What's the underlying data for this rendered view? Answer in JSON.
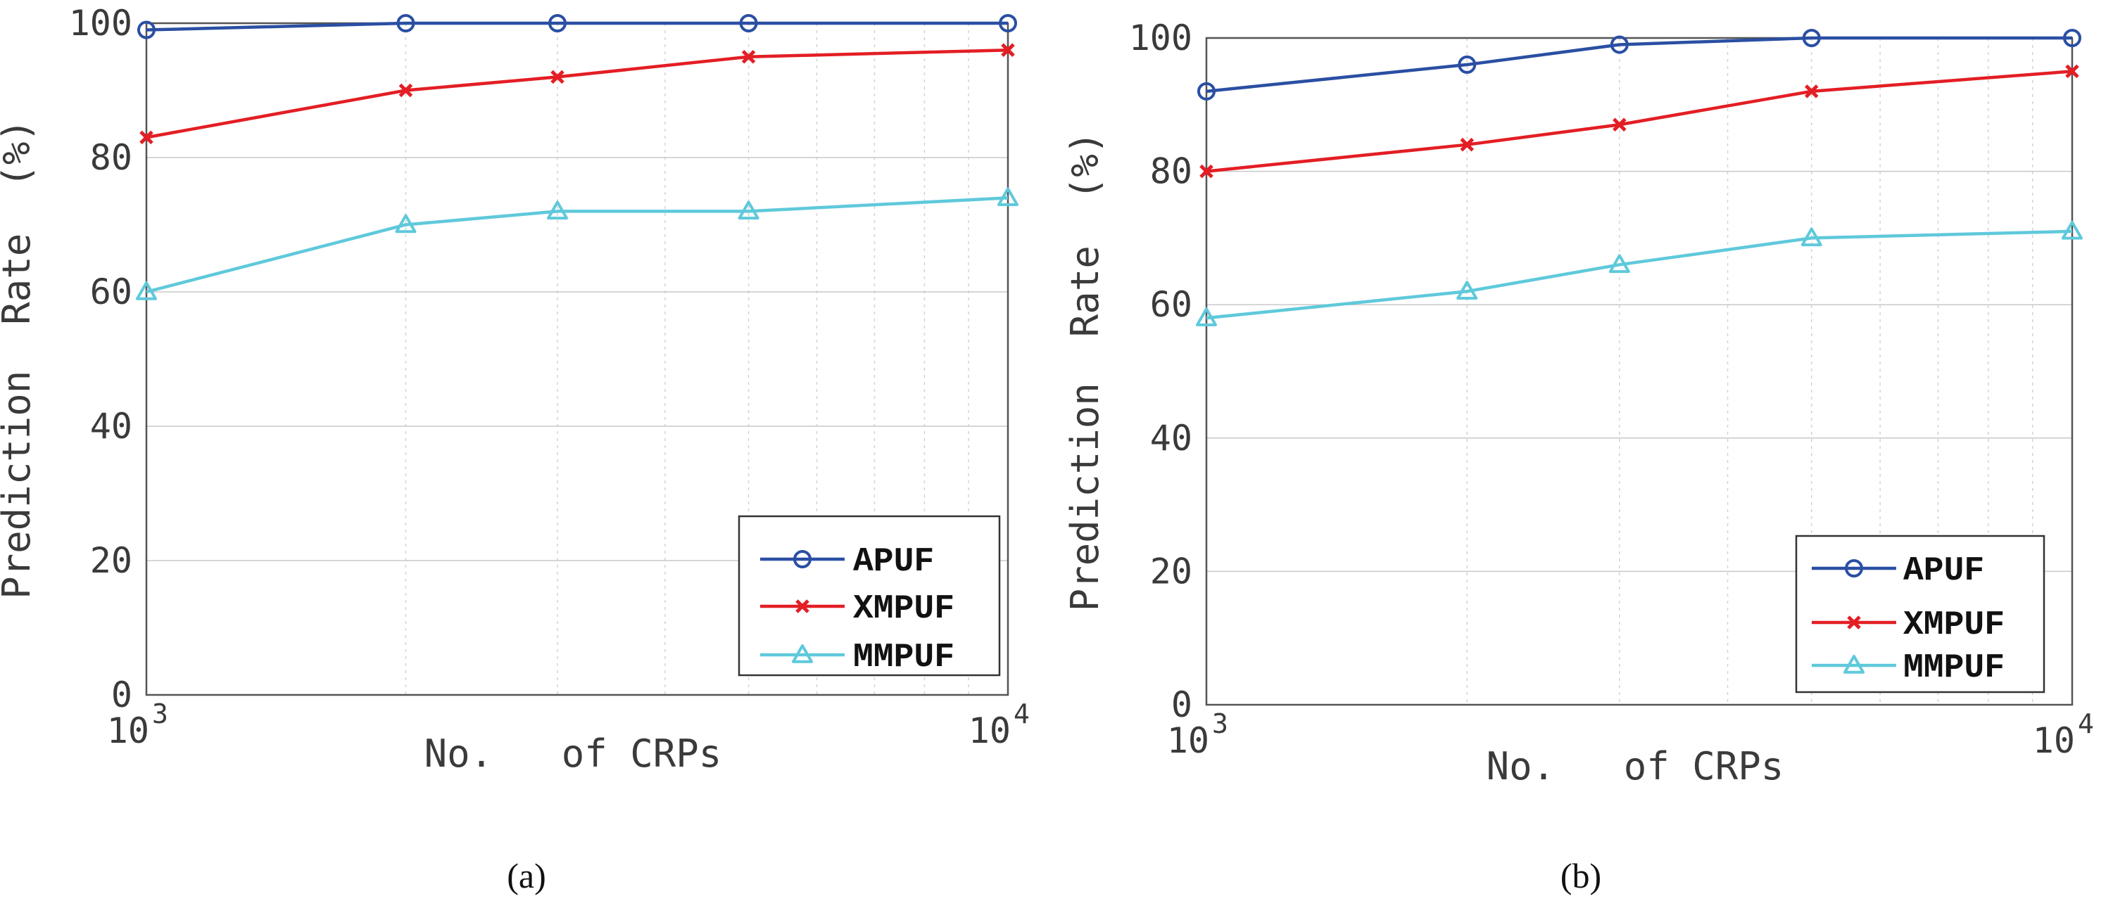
{
  "chart_data": [
    {
      "id": "a",
      "type": "line",
      "caption": "(a)",
      "xscale": "log",
      "x": [
        1000,
        2000,
        3000,
        5000,
        10000
      ],
      "xlim": [
        1000,
        10000
      ],
      "ylim": [
        0,
        100
      ],
      "yticks": [
        0,
        20,
        40,
        60,
        80,
        100
      ],
      "xlabel": "No.   of CRPs",
      "ylabel": "Prediction  Rate  (%)",
      "xtick_base": "10",
      "xtick_exponents": [
        "3",
        "4"
      ],
      "legend_position": "bottom-right",
      "series": [
        {
          "name": "APUF",
          "color": "#2a4fa3",
          "marker": "circle",
          "values": [
            99,
            100,
            100,
            100,
            100
          ]
        },
        {
          "name": "XMPUF",
          "color": "#e31e24",
          "marker": "x",
          "values": [
            83,
            90,
            92,
            95,
            96
          ]
        },
        {
          "name": "MMPUF",
          "color": "#5fc9db",
          "marker": "triangle",
          "values": [
            60,
            70,
            72,
            72,
            74
          ]
        }
      ]
    },
    {
      "id": "b",
      "type": "line",
      "caption": "(b)",
      "xscale": "log",
      "x": [
        1000,
        2000,
        3000,
        5000,
        10000
      ],
      "xlim": [
        1000,
        10000
      ],
      "ylim": [
        0,
        100
      ],
      "yticks": [
        0,
        20,
        40,
        60,
        80,
        100
      ],
      "xlabel": "No.   of CRPs",
      "ylabel": "Prediction  Rate  (%)",
      "xtick_base": "10",
      "xtick_exponents": [
        "3",
        "4"
      ],
      "legend_position": "bottom-right",
      "series": [
        {
          "name": "APUF",
          "color": "#2a4fa3",
          "marker": "circle",
          "values": [
            92,
            96,
            99,
            100,
            100
          ]
        },
        {
          "name": "XMPUF",
          "color": "#e31e24",
          "marker": "x",
          "values": [
            80,
            84,
            87,
            92,
            95
          ]
        },
        {
          "name": "MMPUF",
          "color": "#5fc9db",
          "marker": "triangle",
          "values": [
            58,
            62,
            66,
            70,
            71
          ]
        }
      ]
    }
  ]
}
